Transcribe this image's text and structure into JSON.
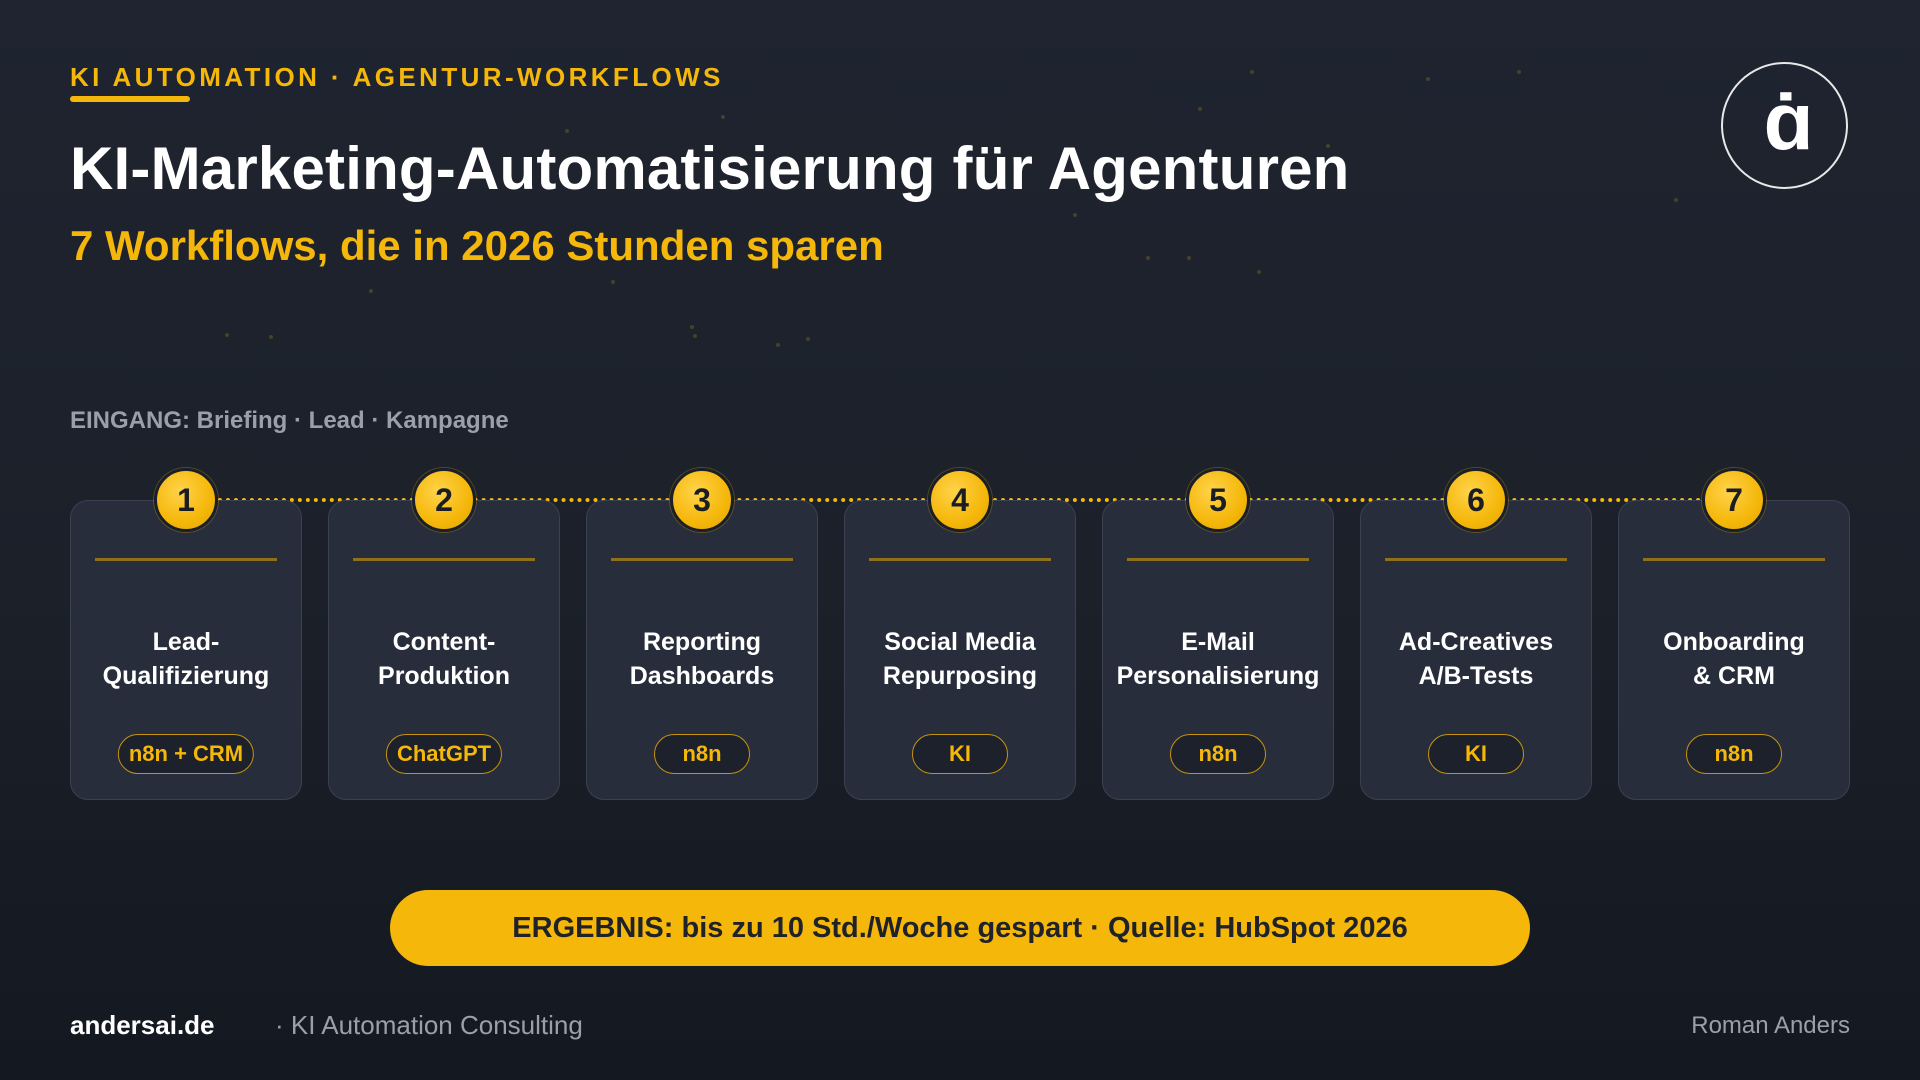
{
  "header": {
    "kicker": "KI AUTOMATION · AGENTUR-WORKFLOWS",
    "title": "KI-Marketing-Automatisierung für Agenturen",
    "subtitle": "7 Workflows, die in 2026 Stunden sparen",
    "logo_letter": "ɑ̇"
  },
  "input_label": "EINGANG: Briefing · Lead · Kampagne",
  "workflows": [
    {
      "number": "1",
      "name": "Lead-\nQualifizierung",
      "tag": "n8n + CRM"
    },
    {
      "number": "2",
      "name": "Content-\nProduktion",
      "tag": "ChatGPT"
    },
    {
      "number": "3",
      "name": "Reporting\nDashboards",
      "tag": "n8n"
    },
    {
      "number": "4",
      "name": "Social Media\nRepurposing",
      "tag": "KI"
    },
    {
      "number": "5",
      "name": "E-Mail\nPersonalisierung",
      "tag": "n8n"
    },
    {
      "number": "6",
      "name": "Ad-Creatives\nA/B-Tests",
      "tag": "KI"
    },
    {
      "number": "7",
      "name": "Onboarding\n& CRM",
      "tag": "n8n"
    }
  ],
  "result": "ERGEBNIS: bis zu 10 Std./Woche gespart · Quelle: HubSpot 2026",
  "footer": {
    "brand": "andersai.de",
    "subline": "· KI Automation Consulting",
    "author": "Roman Anders"
  },
  "colors": {
    "accent": "#f5b70a",
    "background": "#1f2430",
    "card": "#272d3a"
  }
}
